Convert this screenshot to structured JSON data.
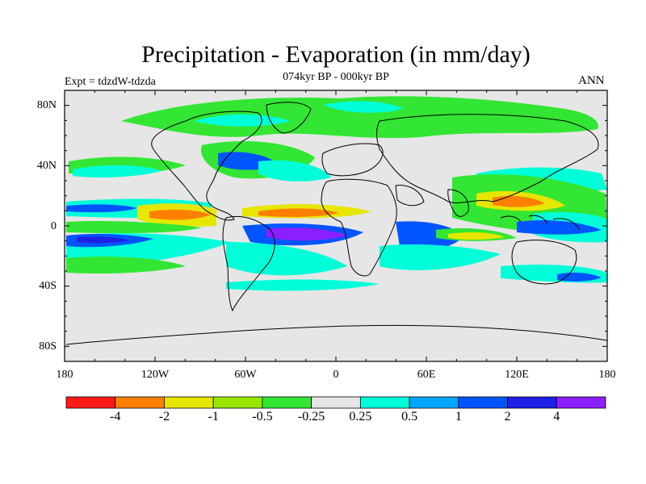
{
  "title": "Precipitation - Evaporation (in mm/day)",
  "subtitle": "074kyr BP - 000kyr BP",
  "experiment": "Expt = tdzdW-tdzda",
  "season": "ANN",
  "axes": {
    "lat_labels": [
      "80N",
      "40N",
      "0",
      "40S",
      "80S"
    ],
    "lon_labels": [
      "180",
      "120W",
      "60W",
      "0",
      "60E",
      "120E",
      "180"
    ]
  },
  "colorbar": {
    "colors": [
      "#ff1a1a",
      "#ff8000",
      "#e6e600",
      "#99e600",
      "#33e633",
      "#e6e6e6",
      "#00ffd9",
      "#00a6ff",
      "#0055ff",
      "#1f1fe6",
      "#8c1fff"
    ],
    "labels": [
      "-4",
      "-2",
      "-1",
      "-0.5",
      "-0.25",
      "0.25",
      "0.5",
      "1",
      "2",
      "4"
    ]
  },
  "palette": {
    "land_outline": "#000000",
    "background": "#e6e6e6"
  }
}
